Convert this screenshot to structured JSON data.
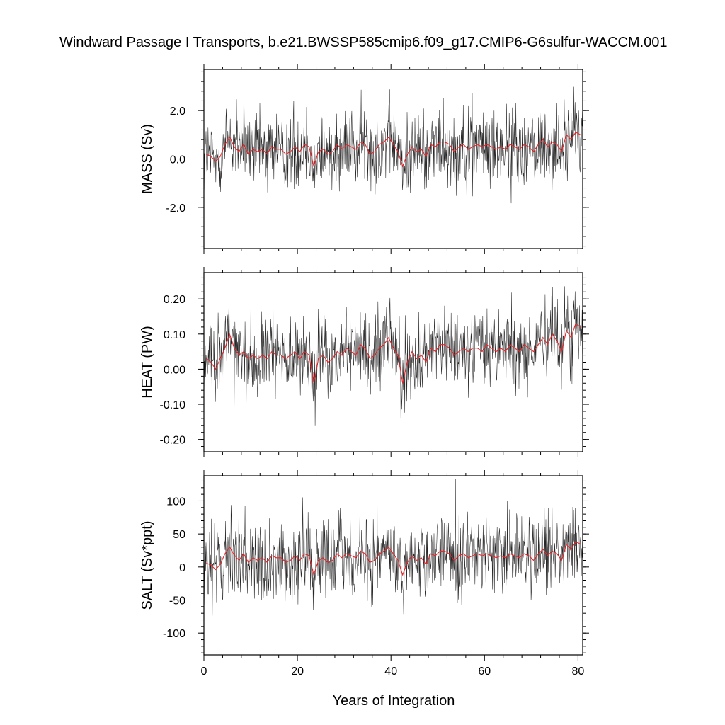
{
  "figure": {
    "title": "Windward Passage I Transports, b.e21.BWSSP585cmip6.f09_g17.CMIP6-G6sulfur-WACCM.001",
    "xlabel": "Years of Integration"
  },
  "chart_data": [
    {
      "type": "line",
      "title": "",
      "xlabel": "Years of Integration",
      "ylabel": "MASS (Sv)",
      "xlim": [
        0,
        81
      ],
      "ylim": [
        -3.7,
        3.7
      ],
      "yticks": [
        -2.0,
        0.0,
        2.0
      ],
      "ytick_labels": [
        "-2.0",
        "0.0",
        "2.0"
      ],
      "xticks": [
        0,
        20,
        40,
        60,
        80
      ],
      "xtick_labels": [
        "0",
        "20",
        "40",
        "60",
        "80"
      ],
      "colors": {
        "monthly": "#000000",
        "annual": "#e8262b"
      },
      "series": [
        {
          "name": "",
          "kind": "annual",
          "x": [
            0.5,
            1.5,
            2.5,
            3.5,
            4.5,
            5.5,
            6.5,
            7.5,
            8.5,
            9.5,
            10.5,
            11.5,
            12.5,
            13.5,
            14.5,
            15.5,
            16.5,
            17.5,
            18.5,
            19.5,
            20.5,
            21.5,
            22.5,
            23.5,
            24.5,
            25.5,
            26.5,
            27.5,
            28.5,
            29.5,
            30.5,
            31.5,
            32.5,
            33.5,
            34.5,
            35.5,
            36.5,
            37.5,
            38.5,
            39.5,
            40.5,
            41.5,
            42.5,
            43.5,
            44.5,
            45.5,
            46.5,
            47.5,
            48.5,
            49.5,
            50.5,
            51.5,
            52.5,
            53.5,
            54.5,
            55.5,
            56.5,
            57.5,
            58.5,
            59.5,
            60.5,
            61.5,
            62.5,
            63.5,
            64.5,
            65.5,
            66.5,
            67.5,
            68.5,
            69.5,
            70.5,
            71.5,
            72.5,
            73.5,
            74.5,
            75.5,
            76.5,
            77.5,
            78.5,
            79.5,
            80.5
          ],
          "y": [
            0.2,
            0.1,
            -0.1,
            0.1,
            0.6,
            0.9,
            0.5,
            0.3,
            0.6,
            0.2,
            0.4,
            0.3,
            0.4,
            0.2,
            0.5,
            0.4,
            0.4,
            0.2,
            0.3,
            0.5,
            0.3,
            0.6,
            0.5,
            -0.3,
            0.3,
            0.4,
            0.2,
            0.3,
            0.6,
            0.4,
            0.6,
            0.5,
            0.4,
            0.7,
            0.6,
            0.2,
            0.3,
            0.6,
            0.7,
            0.9,
            0.6,
            0.3,
            -0.3,
            0.2,
            0.5,
            0.3,
            0.4,
            0.1,
            0.6,
            0.5,
            0.7,
            0.7,
            0.6,
            0.3,
            0.5,
            0.6,
            0.4,
            0.5,
            0.6,
            0.5,
            0.6,
            0.5,
            0.4,
            0.5,
            0.4,
            0.6,
            0.5,
            0.4,
            0.6,
            0.5,
            0.3,
            0.6,
            0.8,
            0.5,
            0.7,
            0.6,
            0.3,
            1.0,
            0.8,
            1.1,
            1.0
          ]
        }
      ]
    },
    {
      "type": "line",
      "title": "",
      "xlabel": "Years of Integration",
      "ylabel": "HEAT (PW)",
      "xlim": [
        0,
        81
      ],
      "ylim": [
        -0.235,
        0.275
      ],
      "yticks": [
        -0.2,
        -0.1,
        0.0,
        0.1,
        0.2
      ],
      "ytick_labels": [
        "-0.20",
        "-0.10",
        "0.00",
        "0.10",
        "0.20"
      ],
      "xticks": [
        0,
        20,
        40,
        60,
        80
      ],
      "xtick_labels": [
        "0",
        "20",
        "40",
        "60",
        "80"
      ],
      "colors": {
        "monthly": "#000000",
        "annual": "#e8262b"
      },
      "series": [
        {
          "name": "",
          "kind": "annual",
          "x": [
            0.5,
            1.5,
            2.5,
            3.5,
            4.5,
            5.5,
            6.5,
            7.5,
            8.5,
            9.5,
            10.5,
            11.5,
            12.5,
            13.5,
            14.5,
            15.5,
            16.5,
            17.5,
            18.5,
            19.5,
            20.5,
            21.5,
            22.5,
            23.5,
            24.5,
            25.5,
            26.5,
            27.5,
            28.5,
            29.5,
            30.5,
            31.5,
            32.5,
            33.5,
            34.5,
            35.5,
            36.5,
            37.5,
            38.5,
            39.5,
            40.5,
            41.5,
            42.5,
            43.5,
            44.5,
            45.5,
            46.5,
            47.5,
            48.5,
            49.5,
            50.5,
            51.5,
            52.5,
            53.5,
            54.5,
            55.5,
            56.5,
            57.5,
            58.5,
            59.5,
            60.5,
            61.5,
            62.5,
            63.5,
            64.5,
            65.5,
            66.5,
            67.5,
            68.5,
            69.5,
            70.5,
            71.5,
            72.5,
            73.5,
            74.5,
            75.5,
            76.5,
            77.5,
            78.5,
            79.5,
            80.5
          ],
          "y": [
            0.03,
            0.02,
            0.0,
            0.03,
            0.06,
            0.1,
            0.06,
            0.04,
            0.05,
            0.03,
            0.04,
            0.03,
            0.04,
            0.03,
            0.05,
            0.04,
            0.04,
            0.03,
            0.04,
            0.05,
            0.03,
            0.05,
            0.04,
            -0.04,
            0.03,
            0.04,
            0.02,
            0.03,
            0.05,
            0.04,
            0.06,
            0.05,
            0.04,
            0.07,
            0.06,
            0.03,
            0.04,
            0.06,
            0.07,
            0.09,
            0.06,
            0.04,
            -0.04,
            0.02,
            0.05,
            0.03,
            0.04,
            0.02,
            0.06,
            0.05,
            0.07,
            0.07,
            0.06,
            0.04,
            0.05,
            0.06,
            0.05,
            0.06,
            0.06,
            0.05,
            0.07,
            0.06,
            0.05,
            0.06,
            0.05,
            0.07,
            0.06,
            0.05,
            0.07,
            0.06,
            0.05,
            0.07,
            0.09,
            0.07,
            0.1,
            0.08,
            0.05,
            0.11,
            0.09,
            0.13,
            0.12
          ]
        }
      ]
    },
    {
      "type": "line",
      "title": "",
      "xlabel": "Years of Integration",
      "ylabel": "SALT (Sv*ppt)",
      "xlim": [
        0,
        81
      ],
      "ylim": [
        -133,
        138
      ],
      "yticks": [
        -100,
        -50,
        0,
        50,
        100
      ],
      "ytick_labels": [
        "-100",
        "-50",
        "0",
        "50",
        "100"
      ],
      "xticks": [
        0,
        20,
        40,
        60,
        80
      ],
      "xtick_labels": [
        "0",
        "20",
        "40",
        "60",
        "80"
      ],
      "colors": {
        "monthly": "#000000",
        "annual": "#e8262b"
      },
      "series": [
        {
          "name": "",
          "kind": "annual",
          "x": [
            0.5,
            1.5,
            2.5,
            3.5,
            4.5,
            5.5,
            6.5,
            7.5,
            8.5,
            9.5,
            10.5,
            11.5,
            12.5,
            13.5,
            14.5,
            15.5,
            16.5,
            17.5,
            18.5,
            19.5,
            20.5,
            21.5,
            22.5,
            23.5,
            24.5,
            25.5,
            26.5,
            27.5,
            28.5,
            29.5,
            30.5,
            31.5,
            32.5,
            33.5,
            34.5,
            35.5,
            36.5,
            37.5,
            38.5,
            39.5,
            40.5,
            41.5,
            42.5,
            43.5,
            44.5,
            45.5,
            46.5,
            47.5,
            48.5,
            49.5,
            50.5,
            51.5,
            52.5,
            53.5,
            54.5,
            55.5,
            56.5,
            57.5,
            58.5,
            59.5,
            60.5,
            61.5,
            62.5,
            63.5,
            64.5,
            65.5,
            66.5,
            67.5,
            68.5,
            69.5,
            70.5,
            71.5,
            72.5,
            73.5,
            74.5,
            75.5,
            76.5,
            77.5,
            78.5,
            79.5,
            80.5
          ],
          "y": [
            6,
            3,
            -4,
            4,
            20,
            30,
            18,
            10,
            20,
            7,
            14,
            10,
            14,
            7,
            17,
            14,
            14,
            7,
            10,
            17,
            10,
            20,
            17,
            -12,
            10,
            14,
            7,
            10,
            20,
            14,
            20,
            17,
            14,
            24,
            20,
            7,
            10,
            20,
            24,
            30,
            20,
            10,
            -12,
            7,
            17,
            10,
            14,
            4,
            20,
            17,
            24,
            24,
            20,
            10,
            17,
            20,
            14,
            17,
            20,
            17,
            20,
            17,
            14,
            17,
            14,
            20,
            17,
            14,
            20,
            17,
            10,
            20,
            27,
            17,
            24,
            20,
            10,
            34,
            27,
            38,
            35
          ]
        }
      ]
    }
  ]
}
